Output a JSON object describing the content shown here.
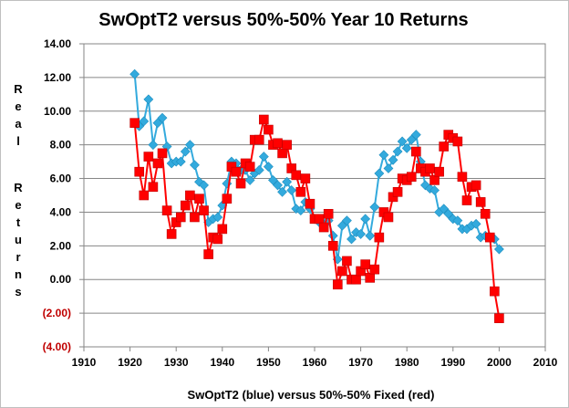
{
  "chart_data": {
    "type": "line",
    "title": "SwOptT2 versus 50%-50% Year 10 Returns",
    "xlabel": "SwOptT2 (blue) versus 50%-50% Fixed (red)",
    "ylabel": "Real Returns",
    "xlim": [
      1910,
      2010
    ],
    "ylim": [
      -4,
      14
    ],
    "x_ticks": [
      "1910",
      "1920",
      "1930",
      "1940",
      "1950",
      "1960",
      "1970",
      "1980",
      "1990",
      "2000",
      "2010"
    ],
    "y_ticks": [
      "14.00",
      "12.00",
      "10.00",
      "8.00",
      "6.00",
      "4.00",
      "2.00",
      "0.00",
      "(2.00)",
      "(4.00)"
    ],
    "negative_tick_color": "#c00000",
    "grid": "horizontal",
    "legend": "none",
    "series": [
      {
        "color": "#33aadd",
        "marker": "diamond",
        "x": [
          1921,
          1922,
          1923,
          1924,
          1925,
          1926,
          1927,
          1928,
          1929,
          1930,
          1931,
          1932,
          1933,
          1934,
          1935,
          1936,
          1937,
          1938,
          1939,
          1940,
          1941,
          1942,
          1943,
          1944,
          1945,
          1946,
          1947,
          1948,
          1949,
          1950,
          1951,
          1952,
          1953,
          1954,
          1955,
          1956,
          1957,
          1958,
          1959,
          1960,
          1961,
          1962,
          1963,
          1964,
          1965,
          1966,
          1967,
          1968,
          1969,
          1970,
          1971,
          1972,
          1973,
          1974,
          1975,
          1976,
          1977,
          1978,
          1979,
          1980,
          1981,
          1982,
          1983,
          1984,
          1985,
          1986,
          1987,
          1988,
          1989,
          1990,
          1991,
          1992,
          1993,
          1994,
          1995,
          1996,
          1997,
          1998,
          1999,
          2000
        ],
        "values": [
          12.2,
          9.1,
          9.4,
          10.7,
          8.0,
          9.3,
          9.6,
          7.9,
          6.9,
          7.0,
          7.0,
          7.6,
          8.0,
          6.8,
          5.8,
          5.6,
          3.4,
          3.6,
          3.7,
          4.4,
          5.7,
          7.0,
          6.9,
          6.5,
          6.5,
          5.9,
          6.3,
          6.5,
          7.3,
          6.7,
          5.9,
          5.6,
          5.2,
          5.8,
          5.3,
          4.2,
          4.1,
          4.6,
          4.2,
          3.6,
          3.4,
          3.3,
          3.5,
          2.6,
          1.2,
          3.2,
          3.5,
          2.4,
          2.8,
          2.7,
          3.6,
          2.6,
          4.3,
          6.3,
          7.4,
          6.6,
          7.1,
          7.6,
          8.2,
          7.8,
          8.3,
          8.6,
          7.0,
          5.6,
          5.4,
          5.3,
          4.0,
          4.2,
          3.9,
          3.6,
          3.5,
          3.0,
          3.0,
          3.2,
          3.3,
          2.5,
          2.6,
          2.5,
          2.4,
          1.8
        ]
      },
      {
        "color": "#ff0000",
        "marker": "square",
        "x": [
          1921,
          1922,
          1923,
          1924,
          1925,
          1926,
          1927,
          1928,
          1929,
          1930,
          1931,
          1932,
          1933,
          1934,
          1935,
          1936,
          1937,
          1938,
          1939,
          1940,
          1941,
          1942,
          1943,
          1944,
          1945,
          1946,
          1947,
          1948,
          1949,
          1950,
          1951,
          1952,
          1953,
          1954,
          1955,
          1956,
          1957,
          1958,
          1959,
          1960,
          1961,
          1962,
          1963,
          1964,
          1965,
          1966,
          1967,
          1968,
          1969,
          1970,
          1971,
          1972,
          1973,
          1974,
          1975,
          1976,
          1977,
          1978,
          1979,
          1980,
          1981,
          1982,
          1983,
          1984,
          1985,
          1986,
          1987,
          1988,
          1989,
          1990,
          1991,
          1992,
          1993,
          1994,
          1995,
          1996,
          1997,
          1998,
          1999,
          2000
        ],
        "values": [
          9.3,
          6.4,
          5.0,
          7.3,
          5.5,
          6.9,
          7.5,
          4.1,
          2.7,
          3.4,
          3.7,
          4.4,
          5.0,
          3.7,
          4.8,
          4.1,
          1.5,
          2.5,
          2.4,
          3.0,
          4.8,
          6.7,
          6.4,
          5.7,
          6.9,
          6.7,
          8.3,
          8.3,
          9.5,
          8.9,
          8.0,
          8.1,
          7.5,
          8.0,
          6.6,
          6.2,
          5.2,
          6.0,
          4.5,
          3.6,
          3.6,
          3.1,
          3.9,
          2.0,
          -0.3,
          0.5,
          1.1,
          0.0,
          0.0,
          0.5,
          0.9,
          0.1,
          0.6,
          2.5,
          4.0,
          3.7,
          4.9,
          5.2,
          6.0,
          5.9,
          6.1,
          7.6,
          6.6,
          6.4,
          6.6,
          5.9,
          6.4,
          7.9,
          8.6,
          8.4,
          8.2,
          6.1,
          4.7,
          5.5,
          5.6,
          4.6,
          3.9,
          2.5,
          -0.7,
          -2.3
        ]
      }
    ]
  }
}
